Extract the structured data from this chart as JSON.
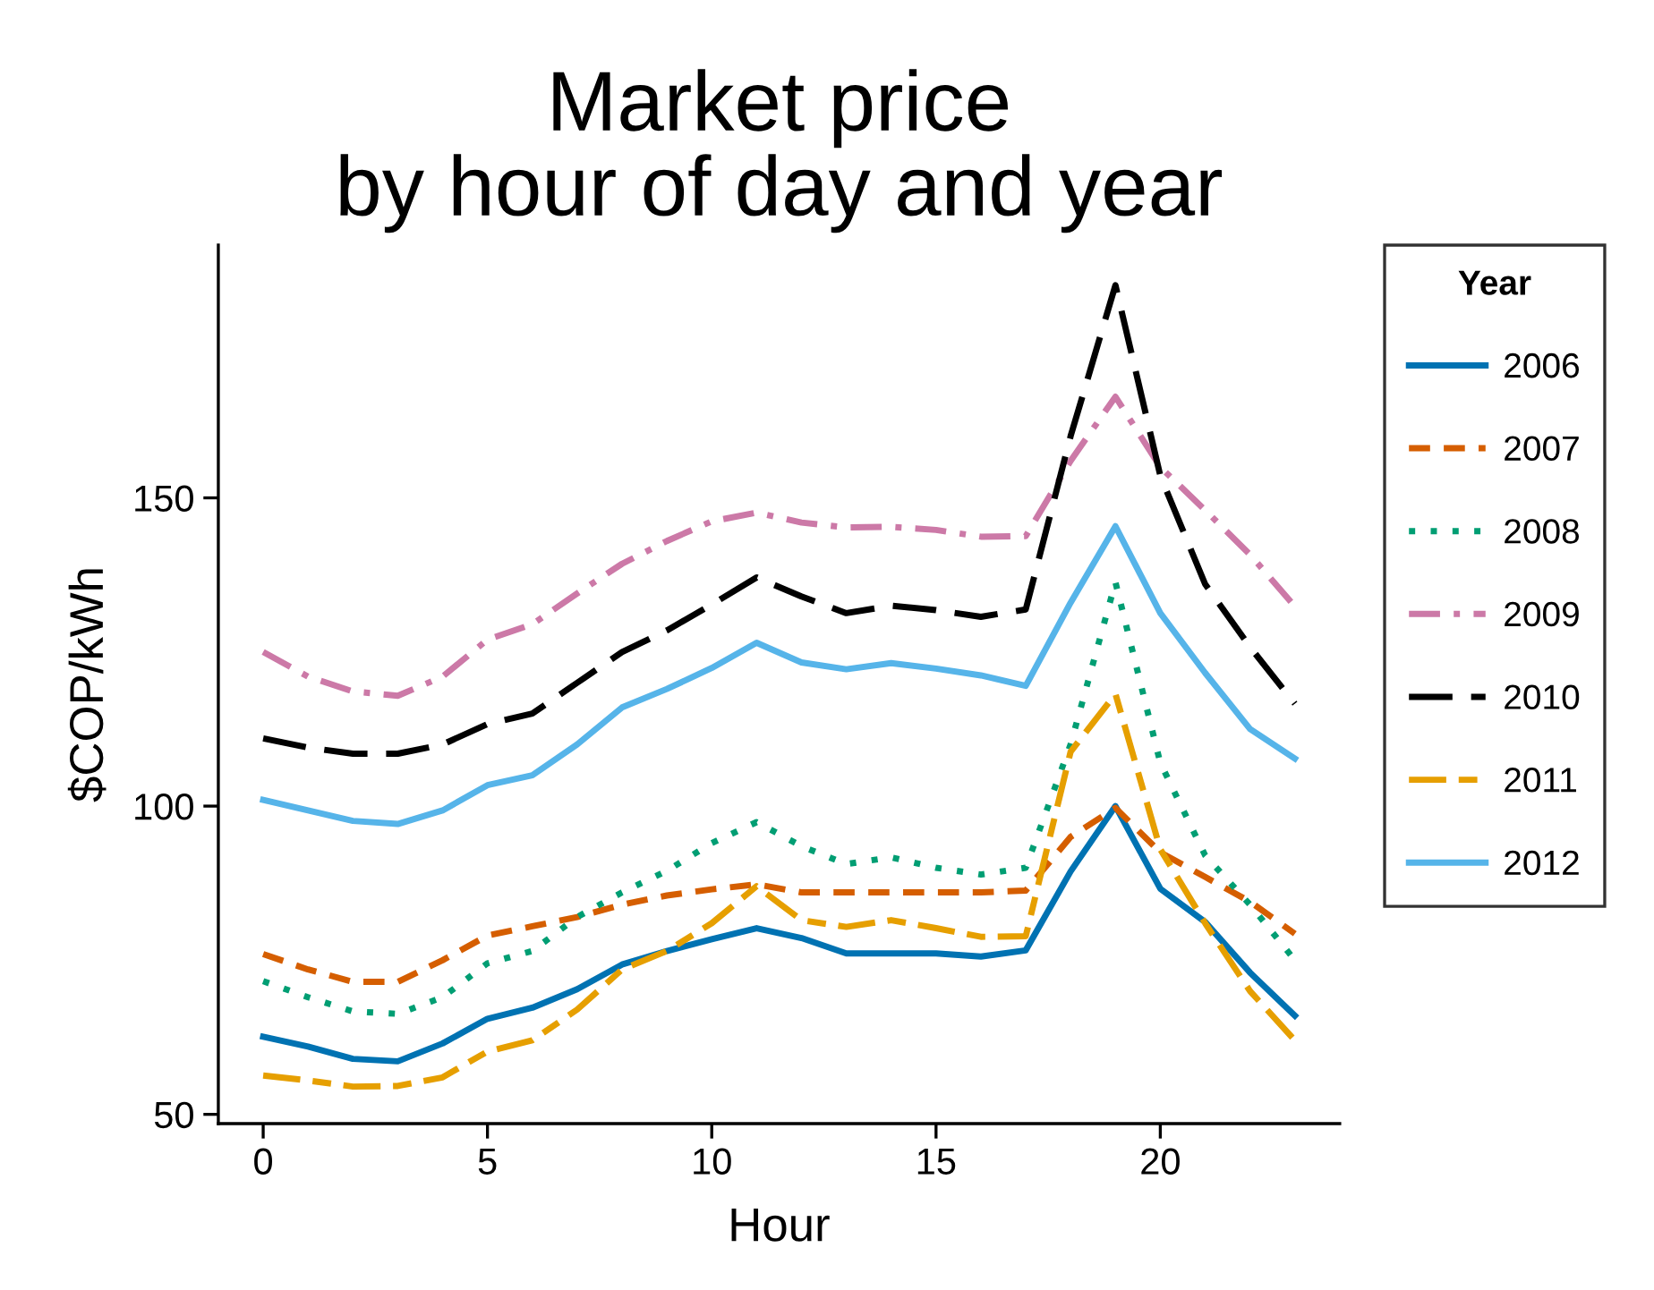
{
  "chart_data": {
    "type": "line",
    "title": "Market price\nby hour of day and year",
    "xlabel": "Hour",
    "ylabel": "$COP/kWh",
    "legend_title": "Year",
    "legend": "right",
    "x": [
      0,
      1,
      2,
      3,
      4,
      5,
      6,
      7,
      8,
      9,
      10,
      11,
      12,
      13,
      14,
      15,
      16,
      17,
      18,
      19,
      20,
      21,
      22,
      23
    ],
    "xlim": [
      -1,
      24
    ],
    "xticks": [
      0,
      5,
      10,
      15,
      20
    ],
    "ylim": [
      48.5,
      191
    ],
    "yticks": [
      50,
      100,
      150
    ],
    "grid": false,
    "series": [
      {
        "name": "2006",
        "color": "#0072b2",
        "line_style": "solid",
        "values": [
          62.6,
          61,
          59,
          58.6,
          61.5,
          65.5,
          67.3,
          70.3,
          74.3,
          76.5,
          78.4,
          80.2,
          78.6,
          76.1,
          76.1,
          76.1,
          75.6,
          76.6,
          89.4,
          100,
          86.6,
          81.2,
          73,
          66
        ]
      },
      {
        "name": "2007",
        "color": "#d55e00",
        "line_style": "dashed",
        "values": [
          76,
          73.5,
          71.5,
          71.5,
          75,
          79,
          80.5,
          82,
          84,
          85.5,
          86.5,
          87.3,
          86,
          86,
          86,
          86,
          86,
          86.3,
          95,
          99.7,
          92.5,
          88.5,
          84.5,
          79.3
        ]
      },
      {
        "name": "2008",
        "color": "#009e73",
        "line_style": "dotted",
        "values": [
          71.6,
          69,
          66.7,
          66.3,
          69,
          74.5,
          76.5,
          82,
          86,
          89.5,
          94,
          97.4,
          93.5,
          90.6,
          91.7,
          90,
          88.9,
          90,
          110,
          136.3,
          107,
          92,
          84,
          75
        ]
      },
      {
        "name": "2009",
        "color": "#cc79a7",
        "line_style": "dashdot",
        "values": [
          125,
          121,
          118.6,
          117.9,
          121,
          127,
          129.5,
          134.5,
          139.3,
          143,
          146.2,
          147.6,
          146,
          145.2,
          145.3,
          144.8,
          143.7,
          143.8,
          156,
          166.4,
          155,
          148,
          140.8,
          132.4
        ]
      },
      {
        "name": "2010",
        "color": "#000000",
        "line_style": "longdash",
        "values": [
          111,
          109.5,
          108.5,
          108.5,
          110,
          113.3,
          115,
          120,
          125,
          128.5,
          132.7,
          137.1,
          134,
          131.3,
          132.5,
          131.8,
          130.7,
          131.9,
          160,
          184.5,
          153.6,
          136,
          125.8,
          116.6
        ]
      },
      {
        "name": "2011",
        "color": "#e69f00",
        "line_style": "longdashdot",
        "values": [
          56.3,
          55.5,
          54.5,
          54.6,
          56,
          60.2,
          62,
          67,
          73.5,
          76.5,
          81,
          87,
          81.5,
          80.4,
          81.5,
          80.2,
          78.8,
          78.9,
          108.8,
          118.2,
          93,
          81,
          70,
          62
        ]
      },
      {
        "name": "2012",
        "color": "#56b4e9",
        "line_style": "solid",
        "values": [
          101,
          99.3,
          97.6,
          97.1,
          99.3,
          103.4,
          105,
          110,
          116,
          119,
          122.4,
          126.5,
          123.3,
          122.2,
          123.2,
          122.3,
          121.2,
          119.5,
          133,
          145.4,
          131.3,
          121.6,
          112.5,
          107.7
        ]
      }
    ]
  }
}
